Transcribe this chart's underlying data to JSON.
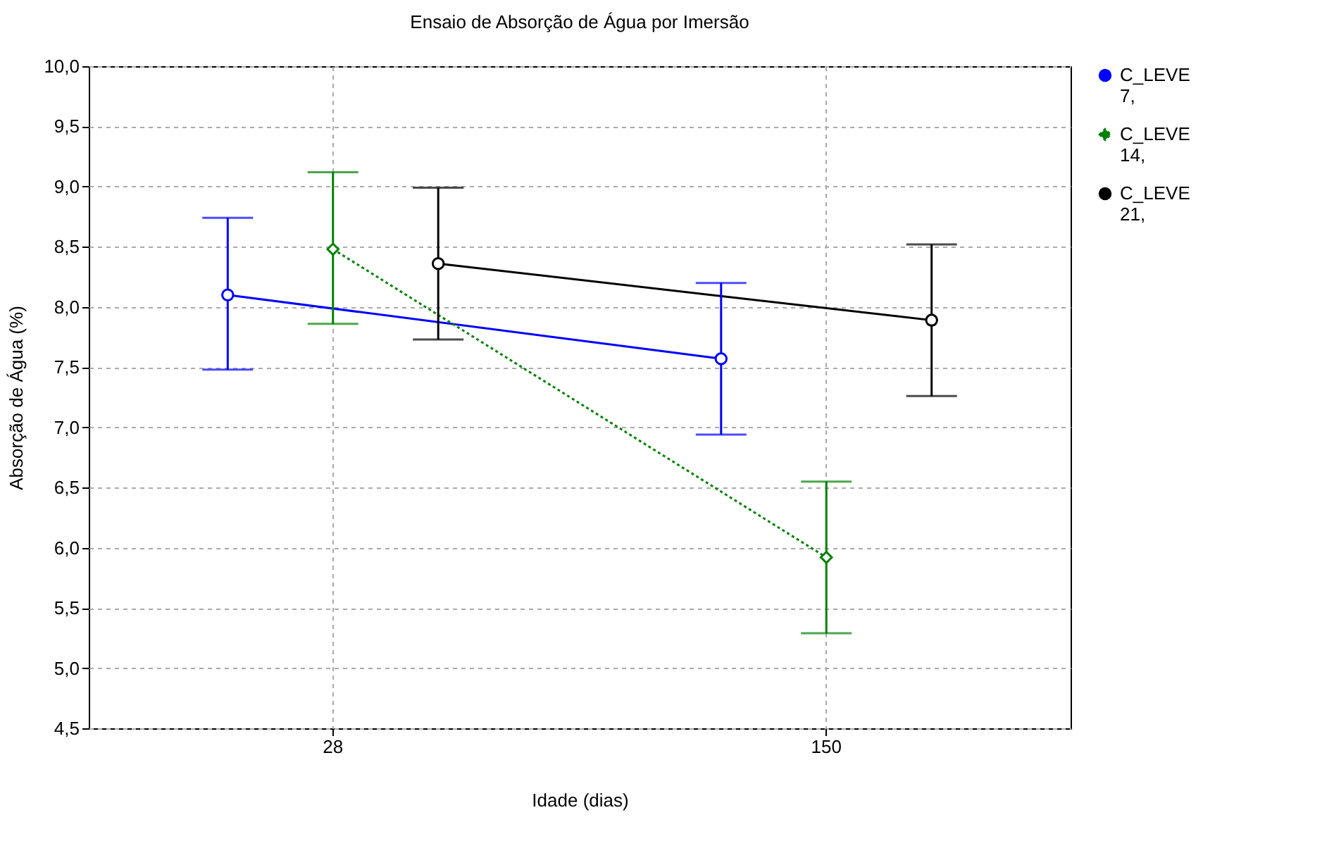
{
  "chart_data": {
    "type": "line",
    "title": "Ensaio de Absorção de Água por Imersão",
    "xlabel": "Idade (dias)",
    "ylabel": "Absorção de Água (%)",
    "categories": [
      "28",
      "150"
    ],
    "series": [
      {
        "name": "C_LEVE 7,",
        "color": "#0000ff",
        "values": [
          8.1,
          7.57
        ],
        "errors": [
          [
            7.48,
            8.74
          ],
          [
            6.94,
            8.2
          ]
        ],
        "marker": "circle",
        "line_style": "solid"
      },
      {
        "name": "C_LEVE 14,",
        "color": "#008000",
        "values": [
          8.48,
          5.92
        ],
        "errors": [
          [
            7.86,
            9.12
          ],
          [
            5.29,
            6.55
          ]
        ],
        "marker": "diamond",
        "line_style": "dotted"
      },
      {
        "name": "C_LEVE 21,",
        "color": "#000000",
        "values": [
          8.36,
          7.89
        ],
        "errors": [
          [
            7.73,
            8.99
          ],
          [
            7.26,
            8.52
          ]
        ],
        "marker": "circle",
        "line_style": "solid"
      }
    ],
    "ylim": [
      4.5,
      10
    ],
    "yticks": [
      {
        "value": 4.5,
        "label": "4,5"
      },
      {
        "value": 5,
        "label": "5,0"
      },
      {
        "value": 5.5,
        "label": "5,5"
      },
      {
        "value": 6,
        "label": "6,0"
      },
      {
        "value": 6.5,
        "label": "6,5"
      },
      {
        "value": 7,
        "label": "7,0"
      },
      {
        "value": 7.5,
        "label": "7,5"
      },
      {
        "value": 8,
        "label": "8,0"
      },
      {
        "value": 8.5,
        "label": "8,5"
      },
      {
        "value": 9,
        "label": "9,0"
      },
      {
        "value": 9.5,
        "label": "9,5"
      },
      {
        "value": 10,
        "label": "10,0"
      }
    ],
    "grid": true,
    "legend": "right"
  }
}
